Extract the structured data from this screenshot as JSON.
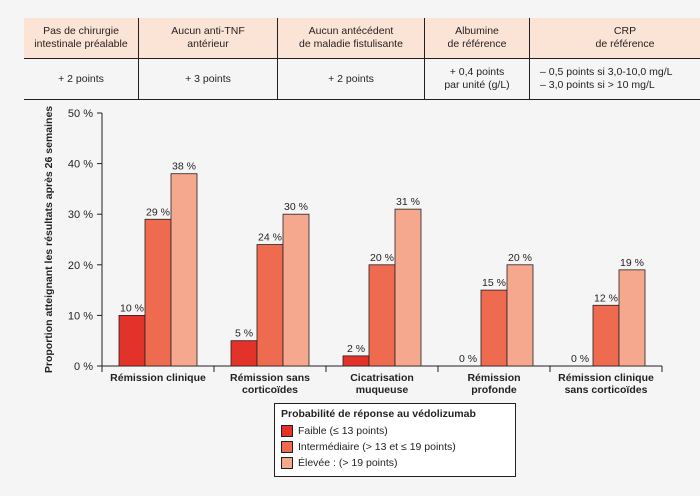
{
  "score_table": {
    "headers": [
      [
        "Pas de chirurgie",
        "intestinale préalable"
      ],
      [
        "Aucun anti-TNF",
        "antérieur"
      ],
      [
        "Aucun antécédent",
        "de maladie fistulisante"
      ],
      [
        "Albumine",
        "de référence"
      ],
      [
        "CRP",
        "de référence"
      ]
    ],
    "values": [
      [
        "+ 2 points"
      ],
      [
        "+ 3 points"
      ],
      [
        "+ 2 points"
      ],
      [
        "+ 0,4 points",
        "par unité (g/L)"
      ],
      [
        "– 0,5 points si 3,0-10,0 mg/L",
        "– 3,0 points si > 10 mg/L"
      ]
    ]
  },
  "chart_data": {
    "type": "bar",
    "ylabel": "Proportion atteignant les résultats après 26 semaines",
    "ylim": [
      0,
      50
    ],
    "yticks": [
      "0 %",
      "10 %",
      "20 %",
      "30 %",
      "40 %",
      "50 %"
    ],
    "categories": [
      [
        "Rémission clinique"
      ],
      [
        "Rémission sans",
        "corticoïdes"
      ],
      [
        "Cicatrisation",
        "muqueuse"
      ],
      [
        "Rémission",
        "profonde"
      ],
      [
        "Rémission clinique",
        "sans corticoïdes"
      ]
    ],
    "series": [
      {
        "name": "Faible (≤ 13 points)",
        "color": "#e2322a",
        "values": [
          10,
          5,
          2,
          0,
          0
        ],
        "labels": [
          "10 %",
          "5 %",
          "2 %",
          "0 %",
          "0 %"
        ]
      },
      {
        "name": "Intermédiaire (> 13 et ≤ 19 points)",
        "color": "#ef6b50",
        "values": [
          29,
          24,
          20,
          15,
          12
        ],
        "labels": [
          "29 %",
          "24 %",
          "20 %",
          "15 %",
          "12 %"
        ]
      },
      {
        "name": "Élevée : (> 19 points)",
        "color": "#f5a88e",
        "values": [
          38,
          30,
          31,
          20,
          19
        ],
        "labels": [
          "38 %",
          "30 %",
          "31 %",
          "20 %",
          "19 %"
        ]
      }
    ],
    "legend_title": "Probabilité de réponse au védolizumab",
    "legend_position": "bottom-center",
    "grid": false
  }
}
